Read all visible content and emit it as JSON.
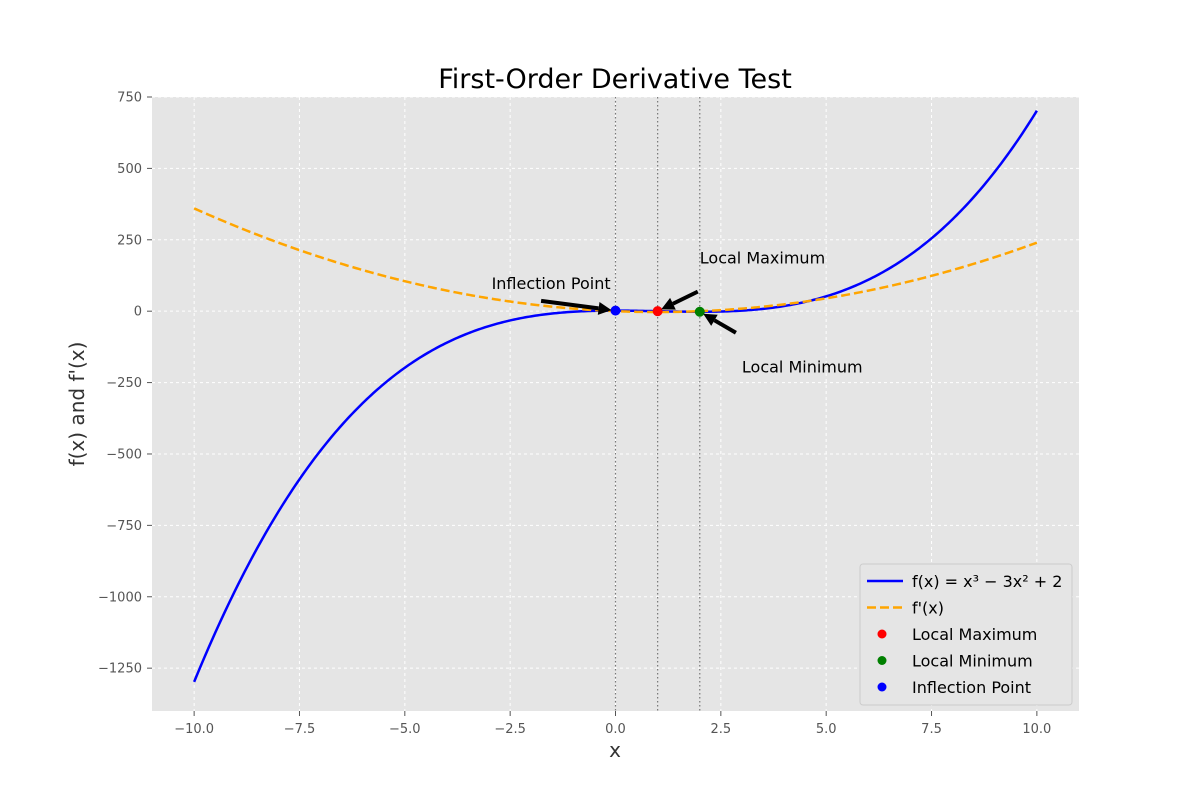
{
  "chart_data": {
    "type": "line",
    "title": "First-Order Derivative Test",
    "xlabel": "x",
    "ylabel": "f(x) and f'(x)",
    "xlim": [
      -11,
      11
    ],
    "ylim": [
      -1400,
      750
    ],
    "x_ticks": [
      -10,
      -7.5,
      -5,
      -2.5,
      0,
      2.5,
      5,
      7.5,
      10
    ],
    "x_tick_labels": [
      "−10.0",
      "−7.5",
      "−5.0",
      "−2.5",
      "0.0",
      "2.5",
      "5.0",
      "7.5",
      "10.0"
    ],
    "y_ticks": [
      750,
      500,
      250,
      0,
      -250,
      -500,
      -750,
      -1000,
      -1250
    ],
    "y_tick_labels": [
      "750",
      "500",
      "250",
      "0",
      "−250",
      "−500",
      "−750",
      "−1000",
      "−1250"
    ],
    "grid": true,
    "x_range": [
      -10,
      10
    ],
    "series": [
      {
        "name": "f(x) = x³ − 3x² + 2",
        "expression": "x^3 - 3x^2 + 2",
        "style": "solid",
        "color": "#0000ff"
      },
      {
        "name": "f'(x)",
        "expression": "3x^2 - 6x",
        "style": "dashed",
        "color": "#ffa500"
      }
    ],
    "vertical_lines": [
      0,
      1,
      2
    ],
    "points": [
      {
        "label": "Local Maximum",
        "x": 1,
        "y": 0,
        "color": "#ff0000"
      },
      {
        "label": "Local Minimum",
        "x": 2,
        "y": -2,
        "color": "#008000"
      },
      {
        "label": "Inflection Point",
        "x": 0,
        "y": 2,
        "color": "#0000ff"
      }
    ],
    "annotations": [
      {
        "text": "Inflection Point",
        "x": 0,
        "y": 2,
        "text_x": -3,
        "text_y": 50
      },
      {
        "text": "Local Maximum",
        "x": 1,
        "y": 0,
        "text_x": 2,
        "text_y": 100
      },
      {
        "text": "Local Minimum",
        "x": 2,
        "y": -2,
        "text_x": 3,
        "text_y": -100
      }
    ],
    "legend": {
      "position": "lower-right",
      "entries": [
        {
          "label": "f(x) = x³ − 3x² + 2",
          "kind": "line",
          "style": "solid",
          "color": "#0000ff"
        },
        {
          "label": "f'(x)",
          "kind": "line",
          "style": "dashed",
          "color": "#ffa500"
        },
        {
          "label": "Local Maximum",
          "kind": "marker",
          "color": "#ff0000"
        },
        {
          "label": "Local Minimum",
          "kind": "marker",
          "color": "#008000"
        },
        {
          "label": "Inflection Point",
          "kind": "marker",
          "color": "#0000ff"
        }
      ]
    }
  }
}
